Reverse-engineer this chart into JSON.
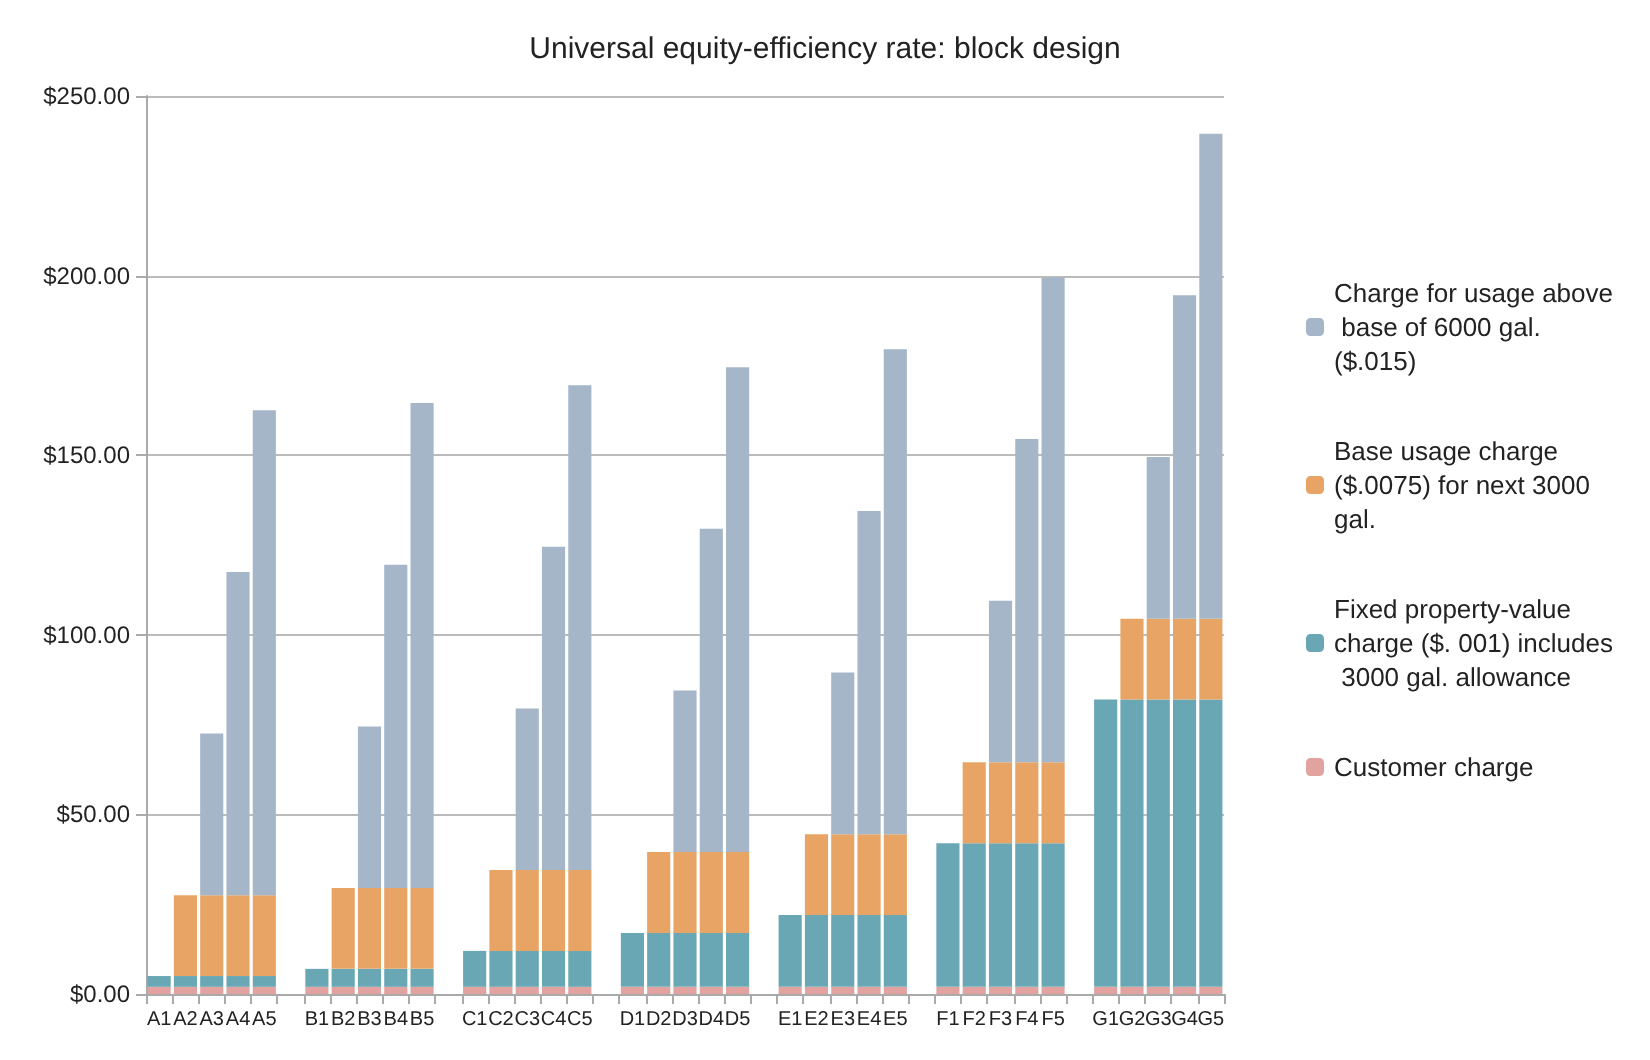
{
  "chart_data": {
    "type": "bar",
    "title": "Universal equity-efficiency rate: block design",
    "categories": [
      "A1",
      "A2",
      "A3",
      "A4",
      "A5",
      null,
      "B1",
      "B2",
      "B3",
      "B4",
      "B5",
      null,
      "C1",
      "C2",
      "C3",
      "C4",
      "C5",
      null,
      "D1",
      "D2",
      "D3",
      "D4",
      "D5",
      null,
      "E1",
      "E2",
      "E3",
      "E4",
      "E5",
      null,
      "F1",
      "F2",
      "F3",
      "F4",
      "F5",
      null,
      "G1",
      "G2",
      "G3",
      "G4",
      "G5"
    ],
    "stacked": true,
    "series": [
      {
        "name": "Customer charge",
        "color": "#e2a3a0",
        "values": [
          2,
          2,
          2,
          2,
          2,
          null,
          2,
          2,
          2,
          2,
          2,
          null,
          2,
          2,
          2,
          2,
          2,
          null,
          2,
          2,
          2,
          2,
          2,
          null,
          2,
          2,
          2,
          2,
          2,
          null,
          2,
          2,
          2,
          2,
          2,
          null,
          2,
          2,
          2,
          2,
          2
        ]
      },
      {
        "name": "Fixed property-value charge ($. 001) includes 3000 gal. allowance",
        "color": "#69a7b5",
        "values": [
          3,
          3,
          3,
          3,
          3,
          null,
          5,
          5,
          5,
          5,
          5,
          null,
          10,
          10,
          10,
          10,
          10,
          null,
          15,
          15,
          15,
          15,
          15,
          null,
          20,
          20,
          20,
          20,
          20,
          null,
          40,
          40,
          40,
          40,
          40,
          null,
          80,
          80,
          80,
          80,
          80
        ]
      },
      {
        "name": "Base usage charge ($.0075) for next 3000 gal.",
        "color": "#e8a465",
        "values": [
          null,
          22.5,
          22.5,
          22.5,
          22.5,
          null,
          null,
          22.5,
          22.5,
          22.5,
          22.5,
          null,
          null,
          22.5,
          22.5,
          22.5,
          22.5,
          null,
          null,
          22.5,
          22.5,
          22.5,
          22.5,
          null,
          null,
          22.5,
          22.5,
          22.5,
          22.5,
          null,
          null,
          22.5,
          22.5,
          22.5,
          22.5,
          null,
          null,
          22.5,
          22.5,
          22.5,
          22.5
        ]
      },
      {
        "name": "Charge for usage above base of 6000 gal. ($.015)",
        "color": "#a5b6c9",
        "values": [
          null,
          null,
          45,
          90,
          135,
          null,
          null,
          null,
          45,
          90,
          135,
          null,
          null,
          null,
          45,
          90,
          135,
          null,
          null,
          null,
          45,
          90,
          135,
          null,
          null,
          null,
          45,
          90,
          135,
          null,
          null,
          null,
          45,
          90,
          135,
          null,
          null,
          null,
          45,
          90,
          135
        ]
      }
    ],
    "ylim": [
      0,
      250
    ],
    "yticks": [
      {
        "value": 0,
        "label": "$0.00"
      },
      {
        "value": 50,
        "label": "$50.00"
      },
      {
        "value": 100,
        "label": "$100.00"
      },
      {
        "value": 150,
        "label": "$150.00"
      },
      {
        "value": 200,
        "label": "$200.00"
      },
      {
        "value": 250,
        "label": "$250.00"
      }
    ],
    "grid": "y",
    "legend": "right"
  }
}
